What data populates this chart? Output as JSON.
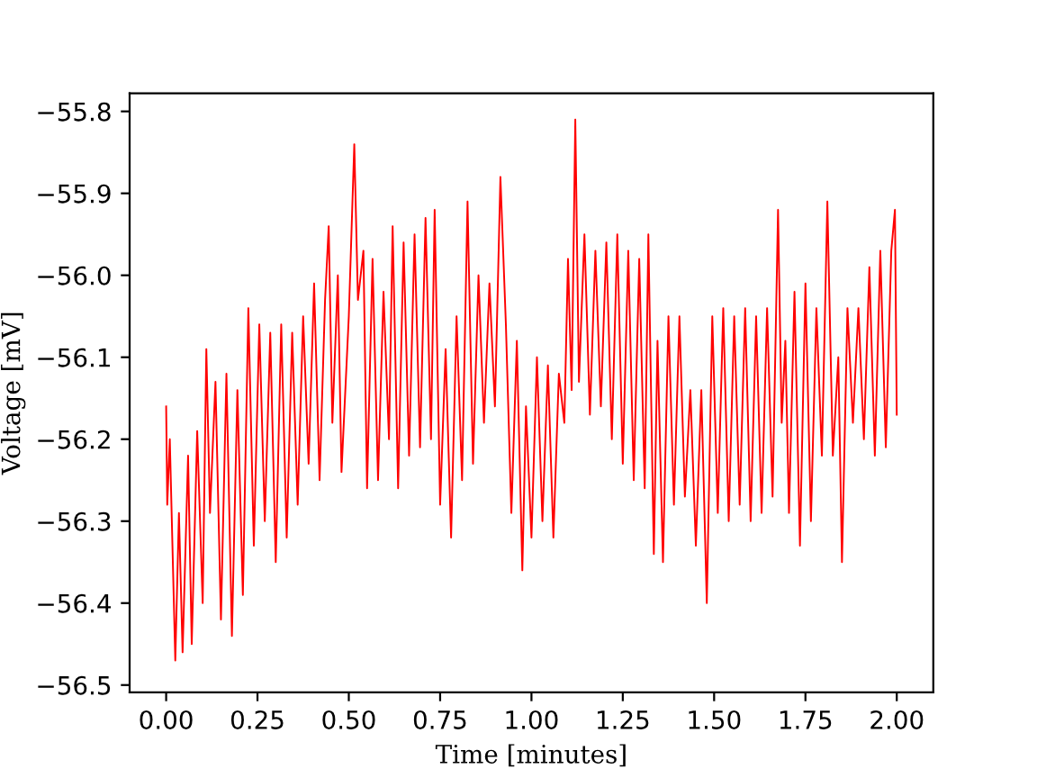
{
  "chart_data": {
    "type": "line",
    "xlabel": "Time [minutes]",
    "ylabel": "Voltage [mV]",
    "xlim": [
      -0.1,
      2.1
    ],
    "ylim": [
      -56.509,
      -55.778
    ],
    "xticks": [
      {
        "value": 0,
        "label": "0.00"
      },
      {
        "value": 0.25,
        "label": "0.25"
      },
      {
        "value": 0.5,
        "label": "0.50"
      },
      {
        "value": 0.75,
        "label": "0.75"
      },
      {
        "value": 1,
        "label": "1.00"
      },
      {
        "value": 1.25,
        "label": "1.25"
      },
      {
        "value": 1.5,
        "label": "1.50"
      },
      {
        "value": 1.75,
        "label": "1.75"
      },
      {
        "value": 2,
        "label": "2.00"
      }
    ],
    "yticks": [
      {
        "value": -55.8,
        "label": "−55.8"
      },
      {
        "value": -55.9,
        "label": "−55.9"
      },
      {
        "value": -56.0,
        "label": "−56.0"
      },
      {
        "value": -56.1,
        "label": "−56.1"
      },
      {
        "value": -56.2,
        "label": "−56.2"
      },
      {
        "value": -56.3,
        "label": "−56.3"
      },
      {
        "value": -56.4,
        "label": "−56.4"
      },
      {
        "value": -56.5,
        "label": "−56.5"
      }
    ],
    "grid": false,
    "line_style": "solid",
    "series": [
      {
        "color": "#ff0000",
        "x": [
          0.0,
          0.003,
          0.01,
          0.025,
          0.035,
          0.045,
          0.06,
          0.07,
          0.085,
          0.1,
          0.11,
          0.12,
          0.135,
          0.15,
          0.165,
          0.18,
          0.195,
          0.21,
          0.225,
          0.24,
          0.255,
          0.27,
          0.285,
          0.3,
          0.315,
          0.33,
          0.345,
          0.36,
          0.375,
          0.39,
          0.405,
          0.42,
          0.435,
          0.445,
          0.455,
          0.47,
          0.48,
          0.5,
          0.515,
          0.525,
          0.54,
          0.55,
          0.565,
          0.58,
          0.595,
          0.61,
          0.62,
          0.635,
          0.65,
          0.665,
          0.68,
          0.695,
          0.71,
          0.725,
          0.735,
          0.75,
          0.765,
          0.78,
          0.795,
          0.81,
          0.825,
          0.84,
          0.855,
          0.87,
          0.885,
          0.9,
          0.915,
          0.93,
          0.945,
          0.96,
          0.975,
          0.985,
          1.0,
          1.015,
          1.03,
          1.045,
          1.06,
          1.075,
          1.09,
          1.1,
          1.11,
          1.12,
          1.13,
          1.145,
          1.16,
          1.175,
          1.19,
          1.205,
          1.22,
          1.235,
          1.25,
          1.265,
          1.28,
          1.295,
          1.31,
          1.32,
          1.335,
          1.345,
          1.36,
          1.375,
          1.39,
          1.405,
          1.42,
          1.435,
          1.45,
          1.465,
          1.48,
          1.495,
          1.51,
          1.525,
          1.54,
          1.555,
          1.57,
          1.585,
          1.6,
          1.615,
          1.63,
          1.645,
          1.66,
          1.675,
          1.685,
          1.695,
          1.705,
          1.72,
          1.735,
          1.75,
          1.765,
          1.78,
          1.795,
          1.81,
          1.825,
          1.84,
          1.85,
          1.865,
          1.88,
          1.895,
          1.91,
          1.925,
          1.94,
          1.955,
          1.97,
          1.985,
          1.995,
          2.0
        ],
        "values": [
          -56.16,
          -56.28,
          -56.2,
          -56.47,
          -56.29,
          -56.46,
          -56.22,
          -56.45,
          -56.19,
          -56.4,
          -56.09,
          -56.29,
          -56.13,
          -56.42,
          -56.12,
          -56.44,
          -56.14,
          -56.39,
          -56.04,
          -56.33,
          -56.06,
          -56.3,
          -56.07,
          -56.35,
          -56.06,
          -56.32,
          -56.07,
          -56.28,
          -56.05,
          -56.23,
          -56.01,
          -56.25,
          -56.03,
          -55.94,
          -56.18,
          -56.0,
          -56.24,
          -56.05,
          -55.84,
          -56.03,
          -55.97,
          -56.26,
          -55.98,
          -56.25,
          -56.02,
          -56.2,
          -55.94,
          -56.26,
          -55.96,
          -56.22,
          -55.95,
          -56.21,
          -55.93,
          -56.2,
          -55.92,
          -56.28,
          -56.09,
          -56.32,
          -56.05,
          -56.25,
          -55.91,
          -56.23,
          -56.0,
          -56.18,
          -56.01,
          -56.16,
          -55.88,
          -56.06,
          -56.29,
          -56.08,
          -56.36,
          -56.16,
          -56.32,
          -56.1,
          -56.3,
          -56.11,
          -56.32,
          -56.12,
          -56.18,
          -55.98,
          -56.14,
          -55.81,
          -56.13,
          -55.95,
          -56.17,
          -55.97,
          -56.16,
          -55.96,
          -56.2,
          -55.95,
          -56.23,
          -55.97,
          -56.25,
          -55.98,
          -56.26,
          -55.95,
          -56.34,
          -56.08,
          -56.35,
          -56.05,
          -56.28,
          -56.05,
          -56.27,
          -56.14,
          -56.33,
          -56.14,
          -56.4,
          -56.05,
          -56.29,
          -56.04,
          -56.3,
          -56.05,
          -56.28,
          -56.04,
          -56.3,
          -56.05,
          -56.29,
          -56.04,
          -56.27,
          -55.92,
          -56.18,
          -56.08,
          -56.29,
          -56.02,
          -56.33,
          -56.01,
          -56.3,
          -56.04,
          -56.22,
          -55.91,
          -56.22,
          -56.1,
          -56.35,
          -56.04,
          -56.18,
          -56.04,
          -56.2,
          -55.99,
          -56.22,
          -55.97,
          -56.21,
          -55.97,
          -55.92,
          -56.17
        ]
      }
    ]
  }
}
